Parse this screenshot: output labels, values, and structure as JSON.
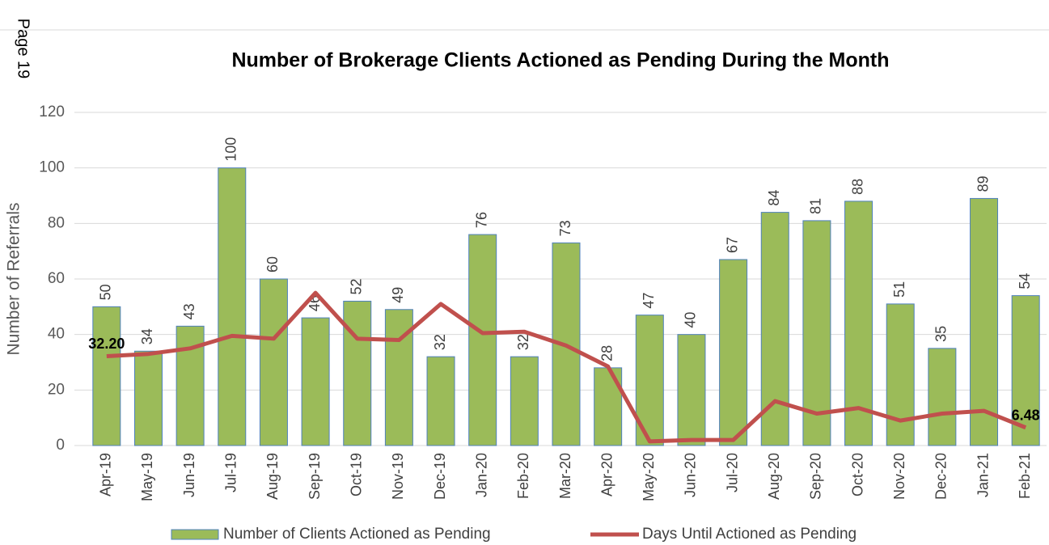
{
  "page_label": "Page 19",
  "chart_data": {
    "type": "bar",
    "title": "Number of Brokerage Clients Actioned as Pending During the Month",
    "y_label": "Number of Referrals",
    "categories": [
      "Apr-19",
      "May-19",
      "Jun-19",
      "Jul-19",
      "Aug-19",
      "Sep-19",
      "Oct-19",
      "Nov-19",
      "Dec-19",
      "Jan-20",
      "Feb-20",
      "Mar-20",
      "Apr-20",
      "May-20",
      "Jun-20",
      "Jul-20",
      "Aug-20",
      "Sep-20",
      "Oct-20",
      "Nov-20",
      "Dec-20",
      "Jan-21",
      "Feb-21"
    ],
    "series": [
      {
        "name": "Number of Clients Actioned as Pending",
        "type": "bar",
        "color": "#9bbb59",
        "values": [
          50,
          34,
          43,
          100,
          60,
          46,
          52,
          49,
          32,
          76,
          32,
          73,
          28,
          47,
          40,
          67,
          84,
          81,
          88,
          51,
          35,
          89,
          54
        ]
      },
      {
        "name": "Days Until Actioned as Pending",
        "type": "line",
        "color": "#c0504d",
        "values": [
          32.2,
          33,
          35,
          39.5,
          38.5,
          55,
          38.5,
          38,
          51,
          40.5,
          41,
          36,
          28.5,
          1.5,
          2,
          2,
          16,
          11.5,
          13.5,
          9,
          11.5,
          12.5,
          6.48
        ],
        "value_labels": [
          "32.20",
          null,
          null,
          null,
          null,
          null,
          null,
          null,
          null,
          null,
          null,
          null,
          null,
          null,
          null,
          null,
          null,
          null,
          null,
          null,
          null,
          null,
          "6.48"
        ]
      }
    ],
    "ylim": [
      0,
      120
    ],
    "yticks": [
      0,
      20,
      40,
      60,
      80,
      100,
      120
    ],
    "grid": true,
    "legend": "bottom"
  }
}
